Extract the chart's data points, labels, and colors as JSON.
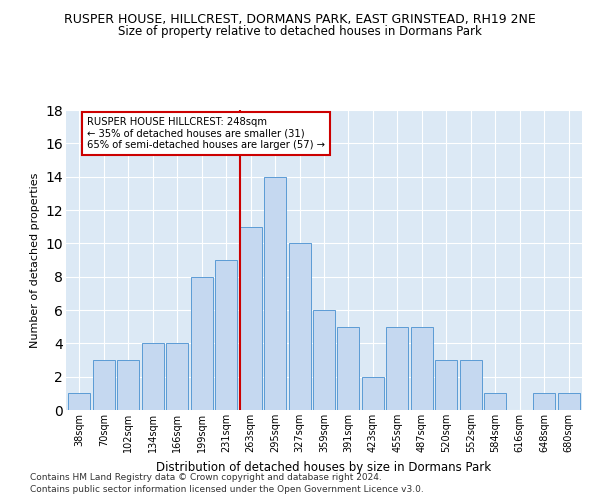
{
  "title": "RUSPER HOUSE, HILLCREST, DORMANS PARK, EAST GRINSTEAD, RH19 2NE",
  "subtitle": "Size of property relative to detached houses in Dormans Park",
  "xlabel": "Distribution of detached houses by size in Dormans Park",
  "ylabel": "Number of detached properties",
  "footnote1": "Contains HM Land Registry data © Crown copyright and database right 2024.",
  "footnote2": "Contains public sector information licensed under the Open Government Licence v3.0.",
  "categories": [
    "38sqm",
    "70sqm",
    "102sqm",
    "134sqm",
    "166sqm",
    "199sqm",
    "231sqm",
    "263sqm",
    "295sqm",
    "327sqm",
    "359sqm",
    "391sqm",
    "423sqm",
    "455sqm",
    "487sqm",
    "520sqm",
    "552sqm",
    "584sqm",
    "616sqm",
    "648sqm",
    "680sqm"
  ],
  "values": [
    1,
    3,
    3,
    4,
    4,
    8,
    9,
    11,
    14,
    10,
    6,
    5,
    2,
    5,
    5,
    3,
    3,
    1,
    0,
    1,
    1
  ],
  "bar_color": "#c5d8f0",
  "bar_edge_color": "#5b9bd5",
  "ref_line_color": "#cc0000",
  "annotation_text": "RUSPER HOUSE HILLCREST: 248sqm\n← 35% of detached houses are smaller (31)\n65% of semi-detached houses are larger (57) →",
  "annotation_box_color": "#ffffff",
  "annotation_box_edge_color": "#cc0000",
  "ylim": [
    0,
    18
  ],
  "yticks": [
    0,
    2,
    4,
    6,
    8,
    10,
    12,
    14,
    16,
    18
  ],
  "axes_bg_color": "#dce9f5",
  "ref_line_index": 6.5625
}
